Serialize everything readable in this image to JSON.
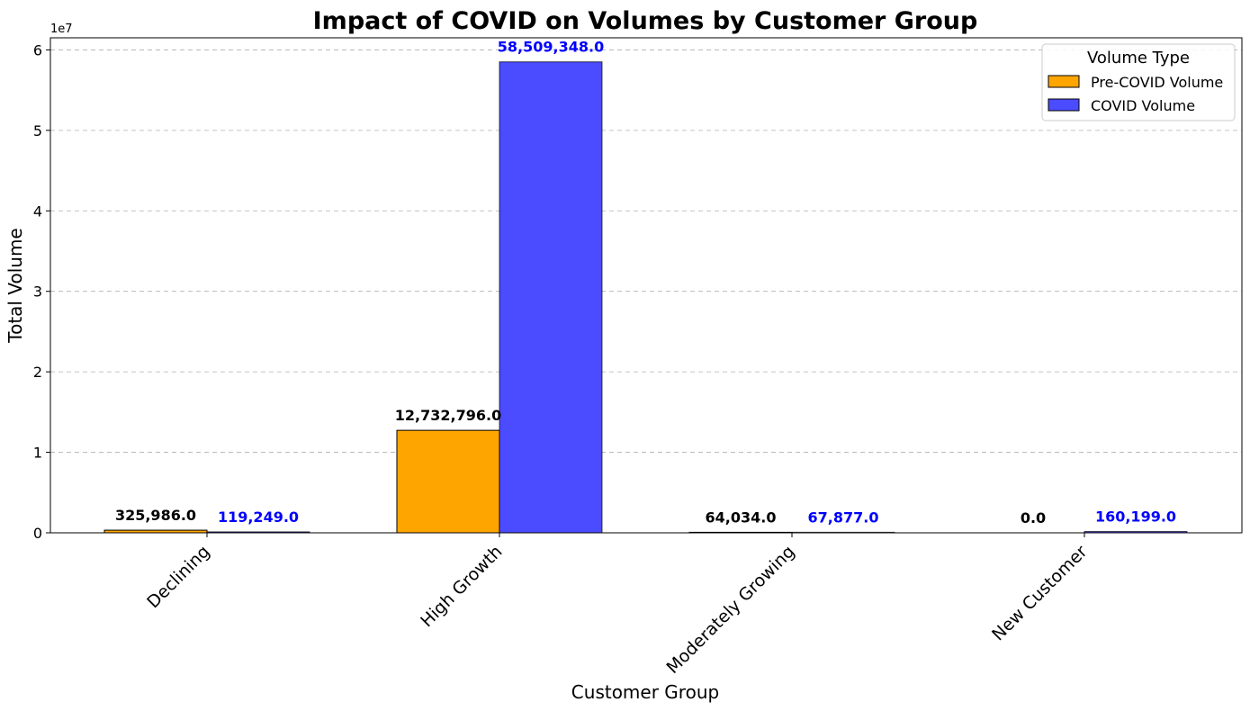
{
  "chart_data": {
    "type": "bar",
    "title": "Impact of COVID on Volumes by Customer Group",
    "xlabel": "Customer Group",
    "ylabel": "Total Volume",
    "y_scale_text": "1e7",
    "y_tick_labels": [
      "0",
      "1",
      "2",
      "3",
      "4",
      "5",
      "6"
    ],
    "y_tick_values": [
      0,
      10000000,
      20000000,
      30000000,
      40000000,
      50000000,
      60000000
    ],
    "ylim": [
      0,
      61500000
    ],
    "grid": "y-dashed",
    "legend_title": "Volume Type",
    "legend_placement": "top-right",
    "categories": [
      "Declining",
      "High Growth",
      "Moderately Growing",
      "New Customer"
    ],
    "series": [
      {
        "name": "Pre-COVID Volume",
        "color": "#FFA500",
        "label_color": "#000000",
        "values": [
          325986,
          12732796,
          64034,
          0
        ],
        "labels": [
          "325,986.0",
          "12,732,796.0",
          "64,034.0",
          "0.0"
        ]
      },
      {
        "name": "COVID Volume",
        "color": "#4B4BFF",
        "label_color": "#0000FF",
        "values": [
          119249,
          58509348,
          67877,
          160199
        ],
        "labels": [
          "119,249.0",
          "58,509,348.0",
          "67,877.0",
          "160,199.0"
        ]
      }
    ]
  }
}
